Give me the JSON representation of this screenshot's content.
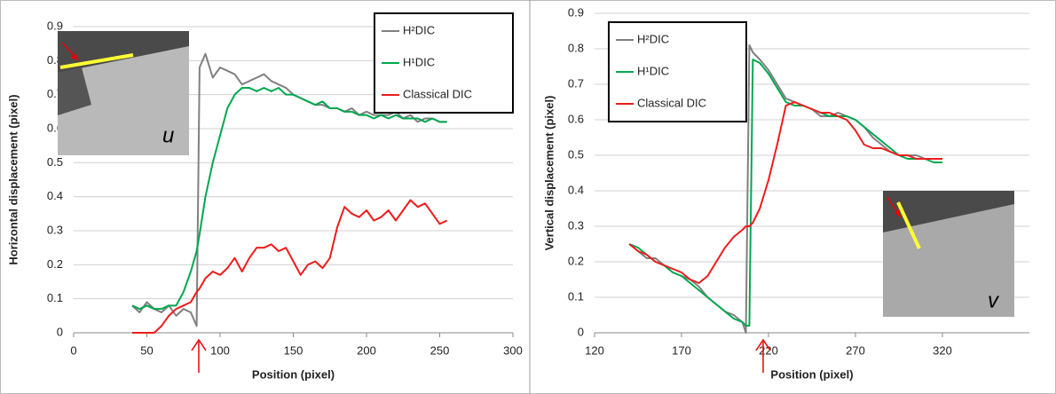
{
  "chart_data": [
    {
      "type": "line",
      "x_label": "Position (pixel)",
      "y_label": "Horizontal displacement (pixel)",
      "inset_label": "u",
      "xlim": [
        0,
        300
      ],
      "xticks": [
        0,
        50,
        100,
        150,
        200,
        250,
        300
      ],
      "ylim": [
        0,
        0.9
      ],
      "yticks": [
        0,
        0.1,
        0.2,
        0.3,
        0.4,
        0.5,
        0.6,
        0.7,
        0.8,
        0.9
      ],
      "grid": true,
      "x": [
        40,
        45,
        50,
        55,
        60,
        65,
        70,
        75,
        80,
        84,
        86,
        90,
        95,
        100,
        105,
        110,
        115,
        120,
        125,
        130,
        135,
        140,
        145,
        150,
        155,
        160,
        165,
        170,
        175,
        180,
        185,
        190,
        195,
        200,
        205,
        210,
        215,
        220,
        225,
        230,
        235,
        240,
        245,
        250,
        255
      ],
      "series": [
        {
          "name": "H²DIC",
          "color": "#808080",
          "values": [
            0.08,
            0.06,
            0.09,
            0.07,
            0.06,
            0.08,
            0.05,
            0.07,
            0.06,
            0.02,
            0.78,
            0.82,
            0.75,
            0.78,
            0.77,
            0.76,
            0.73,
            0.74,
            0.75,
            0.76,
            0.74,
            0.73,
            0.72,
            0.7,
            0.69,
            0.68,
            0.67,
            0.67,
            0.66,
            0.66,
            0.65,
            0.66,
            0.64,
            0.65,
            0.64,
            0.64,
            0.64,
            0.65,
            0.63,
            0.64,
            0.62,
            0.63,
            0.63,
            0.62,
            0.62
          ]
        },
        {
          "name": "H¹DIC",
          "color": "#00a84f",
          "values": [
            0.08,
            0.07,
            0.08,
            0.07,
            0.07,
            0.08,
            0.08,
            0.12,
            0.18,
            0.24,
            0.29,
            0.4,
            0.5,
            0.58,
            0.66,
            0.7,
            0.72,
            0.72,
            0.71,
            0.72,
            0.71,
            0.72,
            0.7,
            0.7,
            0.69,
            0.68,
            0.67,
            0.68,
            0.66,
            0.66,
            0.65,
            0.65,
            0.64,
            0.64,
            0.63,
            0.64,
            0.63,
            0.64,
            0.63,
            0.63,
            0.63,
            0.62,
            0.63,
            0.62,
            0.62
          ]
        },
        {
          "name": "Classical DIC",
          "color": "#ee1c1c",
          "values": [
            0.0,
            0.0,
            0.0,
            0.0,
            0.02,
            0.05,
            0.07,
            0.08,
            0.09,
            0.12,
            0.13,
            0.16,
            0.18,
            0.17,
            0.19,
            0.22,
            0.18,
            0.22,
            0.25,
            0.25,
            0.26,
            0.24,
            0.25,
            0.21,
            0.17,
            0.2,
            0.21,
            0.19,
            0.22,
            0.31,
            0.37,
            0.35,
            0.34,
            0.36,
            0.33,
            0.34,
            0.36,
            0.33,
            0.36,
            0.39,
            0.37,
            0.38,
            0.35,
            0.32,
            0.33
          ]
        }
      ]
    },
    {
      "type": "line",
      "x_label": "Position (pixel)",
      "y_label": "Vertical displacement (pixel)",
      "inset_label": "v",
      "xlim": [
        120,
        370
      ],
      "xticks": [
        120,
        170,
        220,
        270,
        320
      ],
      "ylim": [
        0,
        0.9
      ],
      "yticks": [
        0,
        0.1,
        0.2,
        0.3,
        0.4,
        0.5,
        0.6,
        0.7,
        0.8,
        0.9
      ],
      "grid": true,
      "x": [
        140,
        145,
        150,
        155,
        160,
        165,
        170,
        175,
        180,
        185,
        190,
        195,
        200,
        205,
        207,
        209,
        211,
        215,
        220,
        225,
        230,
        235,
        240,
        245,
        250,
        255,
        260,
        265,
        270,
        275,
        280,
        285,
        290,
        295,
        300,
        305,
        310,
        315,
        320
      ],
      "series": [
        {
          "name": "H²DIC",
          "color": "#808080",
          "values": [
            0.25,
            0.23,
            0.21,
            0.21,
            0.19,
            0.17,
            0.16,
            0.15,
            0.13,
            0.1,
            0.08,
            0.06,
            0.05,
            0.03,
            0.0,
            0.81,
            0.79,
            0.77,
            0.74,
            0.7,
            0.66,
            0.65,
            0.64,
            0.63,
            0.61,
            0.61,
            0.62,
            0.61,
            0.6,
            0.58,
            0.55,
            0.53,
            0.51,
            0.5,
            0.5,
            0.5,
            0.49,
            0.49,
            0.49
          ]
        },
        {
          "name": "H¹DIC",
          "color": "#00a84f",
          "values": [
            0.25,
            0.24,
            0.22,
            0.2,
            0.19,
            0.17,
            0.16,
            0.14,
            0.12,
            0.1,
            0.08,
            0.06,
            0.04,
            0.03,
            0.02,
            0.02,
            0.77,
            0.76,
            0.73,
            0.69,
            0.65,
            0.64,
            0.64,
            0.63,
            0.62,
            0.61,
            0.61,
            0.61,
            0.6,
            0.58,
            0.56,
            0.54,
            0.52,
            0.5,
            0.49,
            0.49,
            0.49,
            0.48,
            0.48
          ]
        },
        {
          "name": "Classical DIC",
          "color": "#ee1c1c",
          "values": [
            0.25,
            0.23,
            0.22,
            0.2,
            0.19,
            0.18,
            0.17,
            0.15,
            0.14,
            0.16,
            0.2,
            0.24,
            0.27,
            0.29,
            0.3,
            0.3,
            0.31,
            0.35,
            0.43,
            0.53,
            0.64,
            0.65,
            0.64,
            0.63,
            0.62,
            0.62,
            0.61,
            0.6,
            0.57,
            0.53,
            0.52,
            0.52,
            0.51,
            0.5,
            0.5,
            0.49,
            0.49,
            0.49,
            0.49
          ]
        }
      ]
    }
  ]
}
